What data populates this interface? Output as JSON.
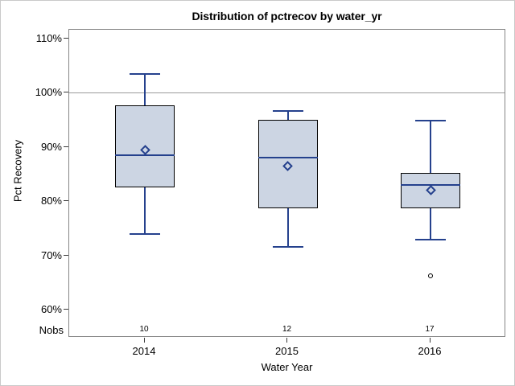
{
  "chart_data": {
    "type": "boxplot",
    "title": "Distribution of pctrecov by water_yr",
    "xlabel": "Water Year",
    "ylabel": "Pct Recovery",
    "nobs_label": "Nobs",
    "categories": [
      "2014",
      "2015",
      "2016"
    ],
    "nobs": [
      "10",
      "12",
      "17"
    ],
    "y_axis": {
      "min": 60,
      "max": 110,
      "tick_step": 10,
      "tick_labels": [
        "110%",
        "100%",
        "90%",
        "80%",
        "70%",
        "60%"
      ]
    },
    "reference_line_y": 100,
    "grid": "off",
    "legend": "none",
    "series": [
      {
        "category": "2014",
        "nobs": 10,
        "whisker_low": 74.0,
        "q1": 82.6,
        "median": 88.5,
        "mean": 89.4,
        "q3": 97.7,
        "whisker_high": 103.5,
        "outliers": []
      },
      {
        "category": "2015",
        "nobs": 12,
        "whisker_low": 71.5,
        "q1": 78.7,
        "median": 88.0,
        "mean": 86.5,
        "q3": 95.0,
        "whisker_high": 96.6,
        "outliers": []
      },
      {
        "category": "2016",
        "nobs": 17,
        "whisker_low": 72.9,
        "q1": 78.7,
        "median": 83.0,
        "mean": 82.0,
        "q3": 85.2,
        "whisker_high": 94.8,
        "outliers": [
          66.1
        ]
      }
    ],
    "colors": {
      "box_fill": "#ccd5e3",
      "box_border": "#000000",
      "whisker_line": "#25418d",
      "reference_line": "#9a9a9a",
      "frame_border": "#868686",
      "outlier_marker": "#000000",
      "text": "#000000",
      "background": "#ffffff",
      "outer_border": "#c9c9c9"
    }
  }
}
